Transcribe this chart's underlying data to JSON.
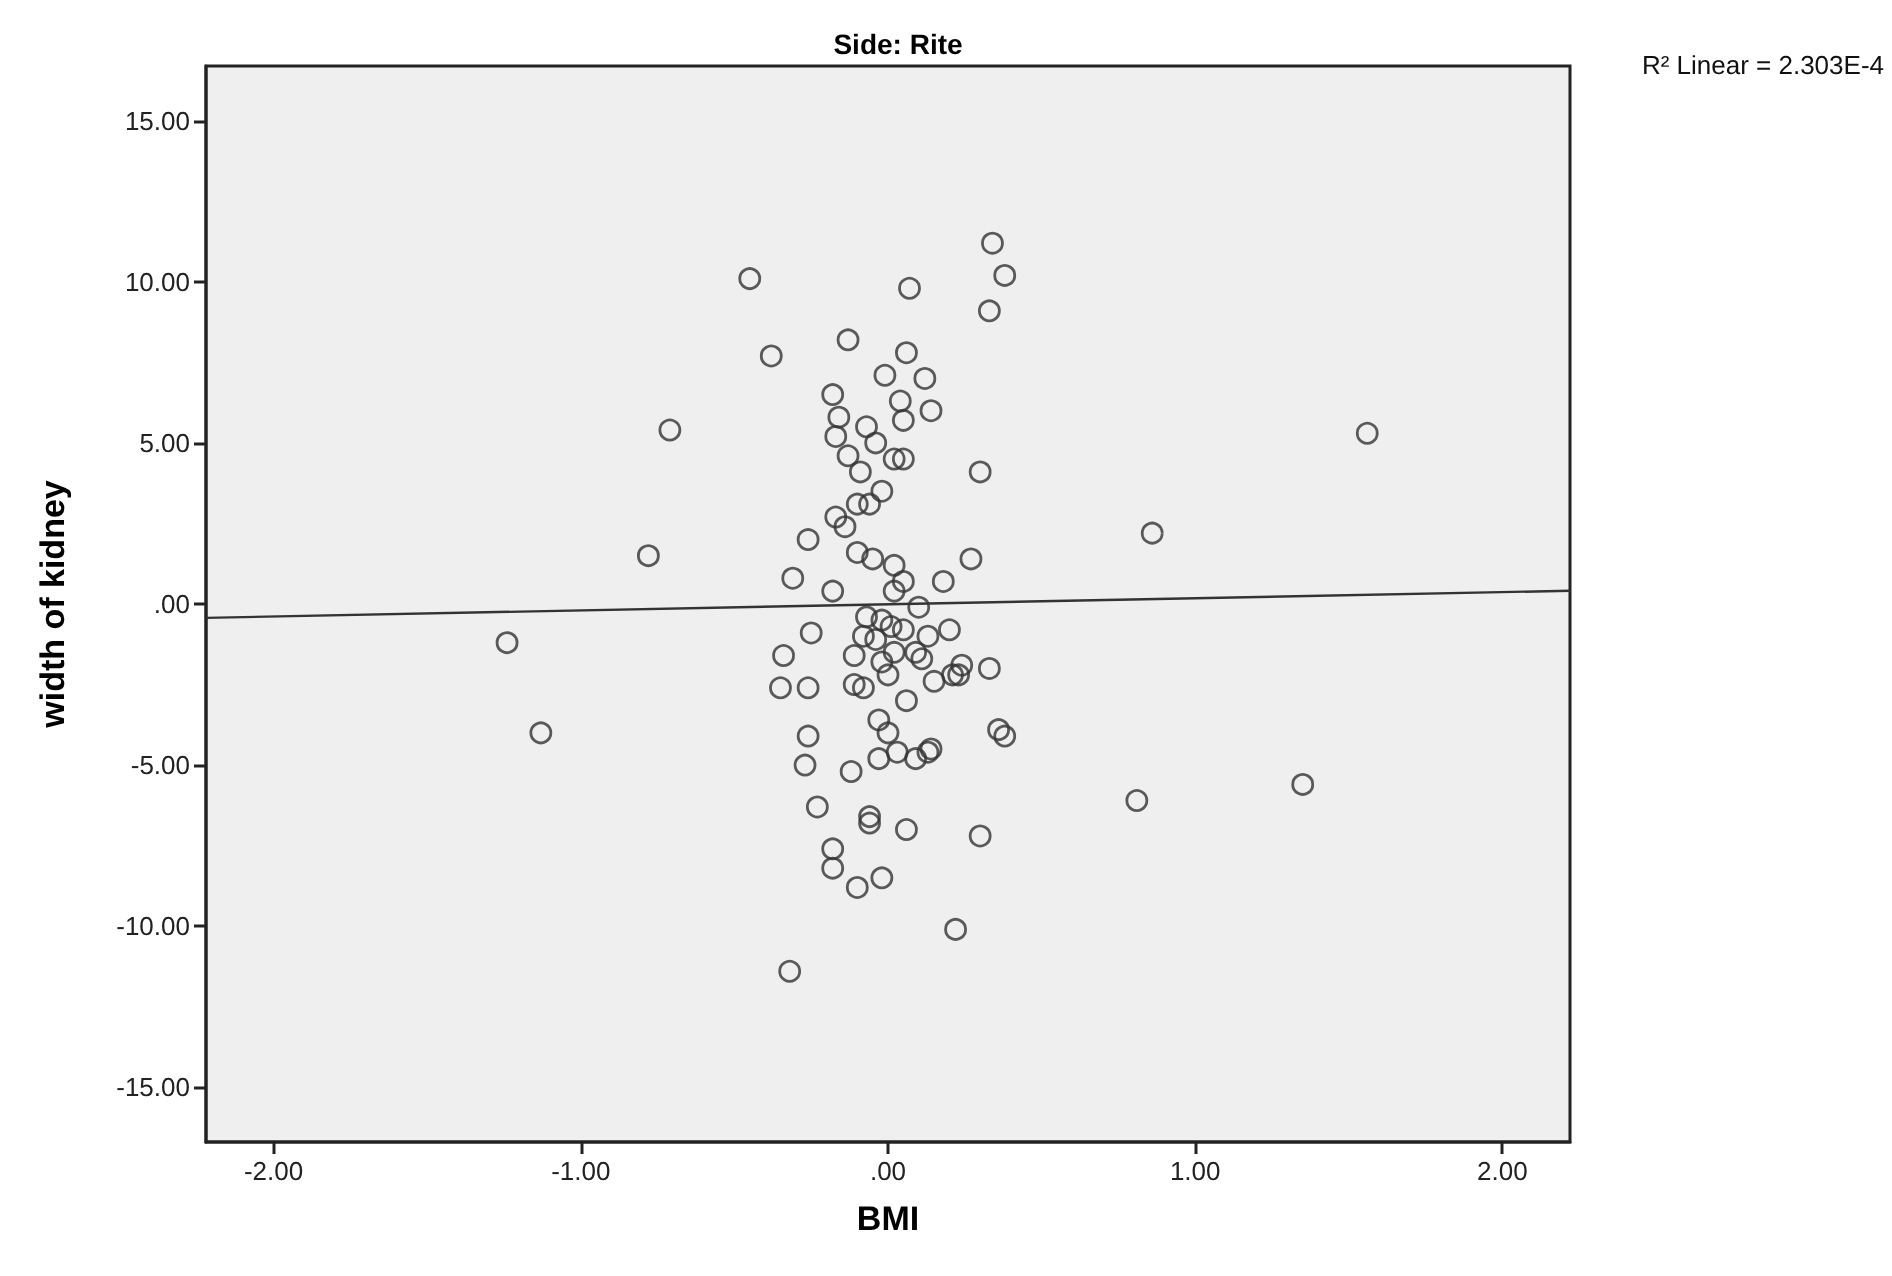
{
  "chart_data": {
    "type": "scatter",
    "title": "Side: Rite",
    "xlabel": "BMI",
    "ylabel": "width of kidney",
    "annotations": [
      "R² Linear = 2.303E-4"
    ],
    "xlim": [
      -2.22,
      2.22
    ],
    "ylim": [
      -16.7,
      16.7
    ],
    "xticks": [
      {
        "value": -2,
        "label": "-2.00"
      },
      {
        "value": -1,
        "label": "-1.00"
      },
      {
        "value": 0,
        "label": ".00"
      },
      {
        "value": 1,
        "label": "1.00"
      },
      {
        "value": 2,
        "label": "2.00"
      }
    ],
    "yticks": [
      {
        "value": -15,
        "label": "-15.00"
      },
      {
        "value": -10,
        "label": "-10.00"
      },
      {
        "value": -5,
        "label": "-5.00"
      },
      {
        "value": 0,
        "label": ".00"
      },
      {
        "value": 5,
        "label": "5.00"
      },
      {
        "value": 10,
        "label": "10.00"
      },
      {
        "value": 15,
        "label": "15.00"
      }
    ],
    "grid": false,
    "marker": "circle",
    "series": [
      {
        "color": "#333333",
        "x": [
          0.34,
          0.38,
          0.33,
          -0.45,
          0.07,
          -0.13,
          -0.38,
          0.06,
          -0.01,
          0.12,
          -0.18,
          0.04,
          0.05,
          0.14,
          -0.16,
          -0.17,
          -0.07,
          -0.04,
          -0.13,
          0.02,
          0.05,
          -0.09,
          0.3,
          -0.02,
          -0.1,
          -0.06,
          -0.17,
          -0.14,
          -0.26,
          -0.1,
          -0.05,
          0.27,
          0.02,
          -0.31,
          0.05,
          0.18,
          -0.18,
          0.02,
          0.1,
          -0.07,
          -0.02,
          0.01,
          -0.25,
          -0.08,
          -0.04,
          0.05,
          0.2,
          0.13,
          -0.34,
          -0.11,
          0.02,
          0.09,
          0.11,
          -0.02,
          0.0,
          0.24,
          0.33,
          0.15,
          0.21,
          0.23,
          -0.35,
          -0.26,
          -0.11,
          -0.08,
          0.06,
          -0.03,
          0.0,
          -0.26,
          0.36,
          0.38,
          0.03,
          -0.03,
          0.09,
          0.13,
          0.14,
          -0.27,
          -0.12,
          -0.23,
          -0.06,
          -0.06,
          0.06,
          0.3,
          -0.18,
          -0.18,
          -0.02,
          -0.1,
          0.22,
          -0.32,
          -1.24,
          -1.13,
          -0.78,
          -0.71,
          1.56,
          0.86,
          0.81,
          1.35
        ],
        "values": [
          11.2,
          10.2,
          9.1,
          10.1,
          9.8,
          8.2,
          7.7,
          7.8,
          7.1,
          7.0,
          6.5,
          6.3,
          5.7,
          6.0,
          5.8,
          5.2,
          5.5,
          5.0,
          4.6,
          4.5,
          4.5,
          4.1,
          4.1,
          3.5,
          3.1,
          3.1,
          2.7,
          2.4,
          2.0,
          1.6,
          1.4,
          1.4,
          1.2,
          0.8,
          0.7,
          0.7,
          0.4,
          0.4,
          -0.1,
          -0.4,
          -0.5,
          -0.7,
          -0.9,
          -1.0,
          -1.1,
          -0.8,
          -0.8,
          -1.0,
          -1.6,
          -1.6,
          -1.5,
          -1.5,
          -1.7,
          -1.8,
          -2.2,
          -1.9,
          -2.0,
          -2.4,
          -2.2,
          -2.2,
          -2.6,
          -2.6,
          -2.5,
          -2.6,
          -3.0,
          -3.6,
          -4.0,
          -4.1,
          -3.9,
          -4.1,
          -4.6,
          -4.8,
          -4.8,
          -4.6,
          -4.5,
          -5.0,
          -5.2,
          -6.3,
          -6.6,
          -6.8,
          -7.0,
          -7.2,
          -7.6,
          -8.2,
          -8.5,
          -8.8,
          -10.1,
          -11.4,
          -1.2,
          -4.0,
          1.5,
          5.4,
          5.3,
          2.2,
          -6.1,
          -5.6
        ]
      },
      {
        "type": "line",
        "color": "#333333",
        "marker": "none",
        "x": [
          -2.22,
          2.22
        ],
        "values": [
          -0.43,
          0.41
        ]
      }
    ]
  }
}
